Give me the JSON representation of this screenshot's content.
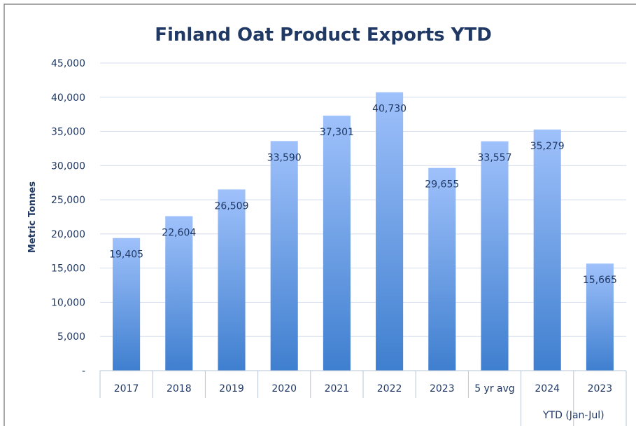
{
  "chart_data": {
    "type": "bar",
    "title": "Finland Oat Product Exports YTD",
    "ylabel": "Metric Tonnes",
    "xlabel": "",
    "ylim": [
      0,
      45000
    ],
    "yticks": [
      "-",
      "5,000",
      "10,000",
      "15,000",
      "20,000",
      "25,000",
      "30,000",
      "35,000",
      "40,000",
      "45,000"
    ],
    "categories": [
      "2017",
      "2018",
      "2019",
      "2020",
      "2021",
      "2022",
      "2023",
      "5 yr avg",
      "2024",
      "2023"
    ],
    "values": [
      19405,
      22604,
      26509,
      33590,
      37301,
      40730,
      29655,
      33557,
      35279,
      15665
    ],
    "data_labels": [
      "19,405",
      "22,604",
      "26,509",
      "33,590",
      "37,301",
      "40,730",
      "29,655",
      "33,557",
      "35,279",
      "15,665"
    ],
    "group_label": "YTD (Jan-Jul)",
    "grid": true,
    "colors": {
      "bar_top": "#9fc1fb",
      "bar_bottom": "#3f7fcf",
      "text": "#1f3864",
      "grid": "#d4deee",
      "axis": "#b8c4d6"
    }
  }
}
